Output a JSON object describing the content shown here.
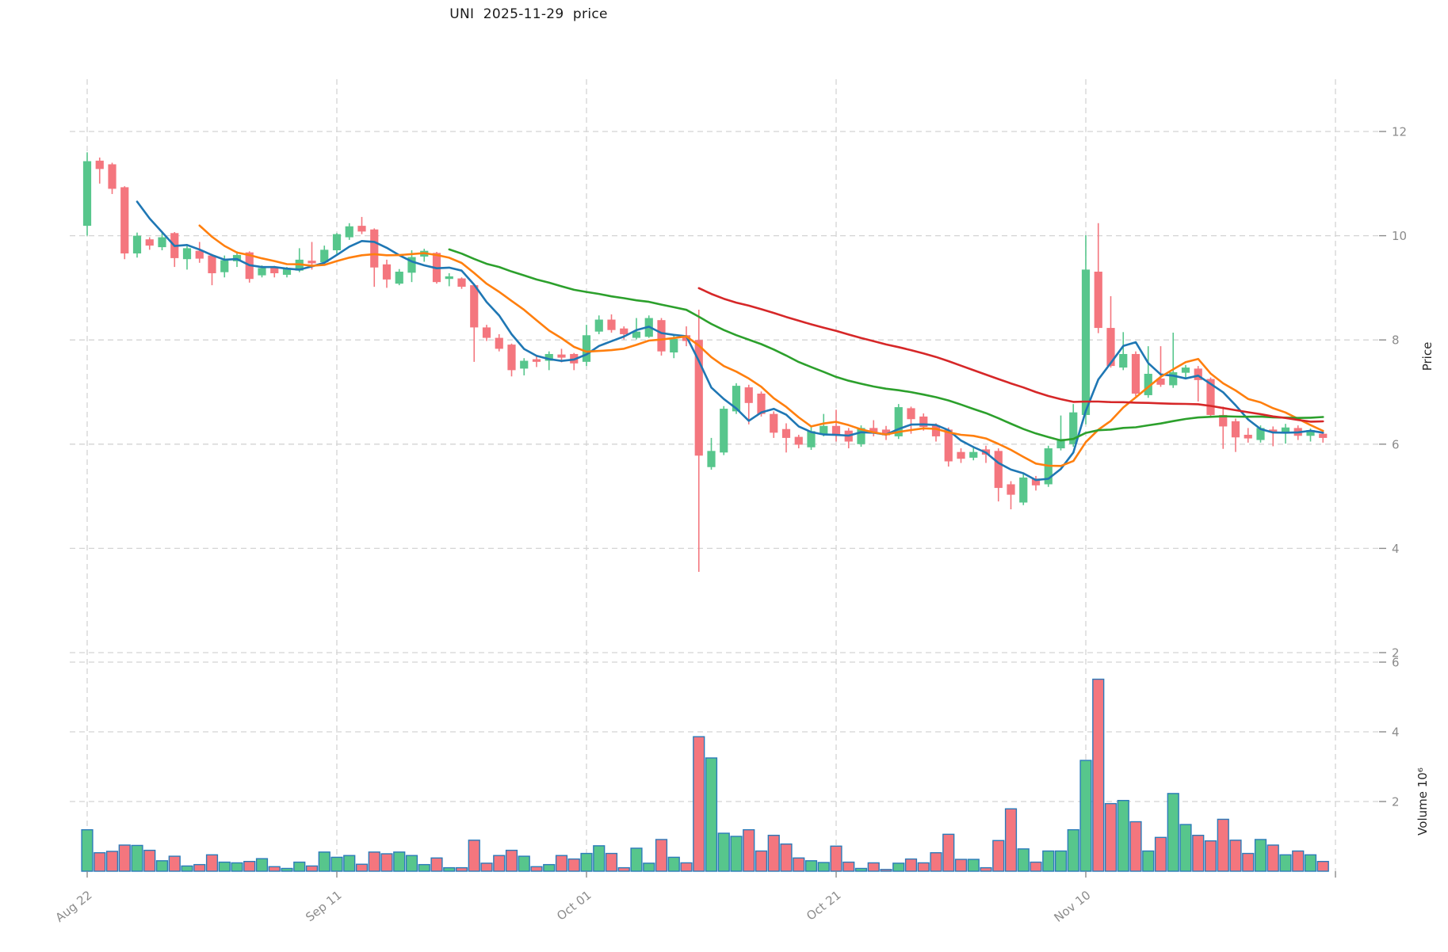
{
  "title": "UNI  2025-11-29  price",
  "chart_data": {
    "type": "candlestick",
    "title": "UNI  2025-11-29  price",
    "ylabel": "Price",
    "volume_ylabel": "Volume  10⁶",
    "legend": "none",
    "grid": "dashed",
    "price_ticks": [
      2,
      4,
      6,
      8,
      10,
      12
    ],
    "price_ylim": [
      1.9,
      13.0
    ],
    "volume_ticks_millions": [
      2,
      4,
      6
    ],
    "volume_ylim_millions": [
      0,
      6.2
    ],
    "x_ticks": [
      {
        "day": 0,
        "label": "Aug 22"
      },
      {
        "day": 20,
        "label": "Sep 11"
      },
      {
        "day": 40,
        "label": "Oct 01"
      },
      {
        "day": 60,
        "label": "Oct 21"
      },
      {
        "day": 80,
        "label": "Nov 10"
      },
      {
        "day": 100,
        "label": ""
      }
    ],
    "moving_averages": [
      {
        "name": "MA5",
        "window": 5,
        "color": "#1f77b4"
      },
      {
        "name": "MA10",
        "window": 10,
        "color": "#ff7f0e"
      },
      {
        "name": "MA30",
        "window": 30,
        "color": "#2ca02c"
      },
      {
        "name": "MA50",
        "window": 50,
        "color": "#d62728"
      }
    ],
    "colors": {
      "up": "#57c68c",
      "down": "#f4767e",
      "volume_edge": "#2b7bba",
      "grid": "#d4d4d4",
      "tick_text": "#8b8b8b",
      "axis_label_text": "#262626"
    },
    "candles_format": [
      "date",
      "open",
      "high",
      "low",
      "close",
      "volume_millions"
    ],
    "candles": [
      [
        "Aug 22",
        10.19,
        11.6,
        10.0,
        11.43,
        1.19
      ],
      [
        "Aug 23",
        11.44,
        11.5,
        11.0,
        11.28,
        0.53
      ],
      [
        "Aug 24",
        11.37,
        11.4,
        10.8,
        10.9,
        0.57
      ],
      [
        "Aug 25",
        10.93,
        10.95,
        9.55,
        9.66,
        0.75
      ],
      [
        "Aug 26",
        9.66,
        10.06,
        9.58,
        10.0,
        0.74
      ],
      [
        "Aug 27",
        9.93,
        9.97,
        9.73,
        9.81,
        0.6
      ],
      [
        "Aug 28",
        9.78,
        10.08,
        9.72,
        9.97,
        0.3
      ],
      [
        "Aug 29",
        10.05,
        10.07,
        9.4,
        9.57,
        0.43
      ],
      [
        "Aug 30",
        9.55,
        9.8,
        9.35,
        9.76,
        0.15
      ],
      [
        "Aug 31",
        9.71,
        9.88,
        9.48,
        9.56,
        0.19
      ],
      [
        "Sep 01",
        9.62,
        9.65,
        9.05,
        9.28,
        0.47
      ],
      [
        "Sep 02",
        9.3,
        9.62,
        9.2,
        9.53,
        0.26
      ],
      [
        "Sep 03",
        9.51,
        9.7,
        9.4,
        9.63,
        0.24
      ],
      [
        "Sep 04",
        9.68,
        9.7,
        9.1,
        9.17,
        0.28
      ],
      [
        "Sep 05",
        9.24,
        9.43,
        9.2,
        9.38,
        0.36
      ],
      [
        "Sep 06",
        9.38,
        9.42,
        9.2,
        9.28,
        0.13
      ],
      [
        "Sep 07",
        9.25,
        9.4,
        9.2,
        9.38,
        0.08
      ],
      [
        "Sep 08",
        9.33,
        9.76,
        9.3,
        9.54,
        0.26
      ],
      [
        "Sep 09",
        9.52,
        9.88,
        9.35,
        9.47,
        0.15
      ],
      [
        "Sep 10",
        9.49,
        9.81,
        9.45,
        9.73,
        0.55
      ],
      [
        "Sep 11",
        9.72,
        10.05,
        9.65,
        10.03,
        0.4
      ],
      [
        "Sep 12",
        9.97,
        10.24,
        9.92,
        10.18,
        0.45
      ],
      [
        "Sep 13",
        10.19,
        10.36,
        10.03,
        10.08,
        0.2
      ],
      [
        "Sep 14",
        10.12,
        10.14,
        9.02,
        9.39,
        0.55
      ],
      [
        "Sep 15",
        9.45,
        9.54,
        9.0,
        9.16,
        0.5
      ],
      [
        "Sep 16",
        9.08,
        9.36,
        9.05,
        9.31,
        0.55
      ],
      [
        "Sep 17",
        9.29,
        9.72,
        9.11,
        9.59,
        0.45
      ],
      [
        "Sep 18",
        9.6,
        9.75,
        9.5,
        9.71,
        0.19
      ],
      [
        "Sep 19",
        9.67,
        9.69,
        9.08,
        9.11,
        0.38
      ],
      [
        "Sep 20",
        9.17,
        9.28,
        9.03,
        9.22,
        0.1
      ],
      [
        "Sep 21",
        9.18,
        9.2,
        8.98,
        9.02,
        0.1
      ],
      [
        "Sep 22",
        9.05,
        9.07,
        7.58,
        8.24,
        0.89
      ],
      [
        "Sep 23",
        8.24,
        8.29,
        7.98,
        8.04,
        0.23
      ],
      [
        "Sep 24",
        8.04,
        8.11,
        7.78,
        7.83,
        0.45
      ],
      [
        "Sep 25",
        7.91,
        7.93,
        7.3,
        7.42,
        0.6
      ],
      [
        "Sep 26",
        7.45,
        7.65,
        7.32,
        7.6,
        0.43
      ],
      [
        "Sep 27",
        7.63,
        7.7,
        7.48,
        7.58,
        0.13
      ],
      [
        "Sep 28",
        7.6,
        7.78,
        7.42,
        7.73,
        0.19
      ],
      [
        "Sep 29",
        7.72,
        7.83,
        7.57,
        7.66,
        0.45
      ],
      [
        "Sep 30",
        7.73,
        7.75,
        7.42,
        7.55,
        0.35
      ],
      [
        "Oct 01",
        7.58,
        8.29,
        7.5,
        8.09,
        0.51
      ],
      [
        "Oct 02",
        8.16,
        8.47,
        8.11,
        8.39,
        0.73
      ],
      [
        "Oct 03",
        8.39,
        8.49,
        8.14,
        8.19,
        0.51
      ],
      [
        "Oct 04",
        8.22,
        8.26,
        8.01,
        8.11,
        0.1
      ],
      [
        "Oct 05",
        8.04,
        8.42,
        8.01,
        8.16,
        0.66
      ],
      [
        "Oct 06",
        8.06,
        8.47,
        8.04,
        8.42,
        0.23
      ],
      [
        "Oct 07",
        8.38,
        8.42,
        7.7,
        7.78,
        0.91
      ],
      [
        "Oct 08",
        7.76,
        8.08,
        7.65,
        8.02,
        0.4
      ],
      [
        "Oct 09",
        8.09,
        8.26,
        7.88,
        7.98,
        0.24
      ],
      [
        "Oct 10",
        8.0,
        8.58,
        3.55,
        5.78,
        3.86
      ],
      [
        "Oct 11",
        5.56,
        6.12,
        5.51,
        5.87,
        3.25
      ],
      [
        "Oct 12",
        5.84,
        6.73,
        5.79,
        6.68,
        1.09
      ],
      [
        "Oct 13",
        6.63,
        7.17,
        6.58,
        7.12,
        1.0
      ],
      [
        "Oct 14",
        7.09,
        7.14,
        6.38,
        6.79,
        1.19
      ],
      [
        "Oct 15",
        6.97,
        7.01,
        6.53,
        6.58,
        0.58
      ],
      [
        "Oct 16",
        6.58,
        6.63,
        6.12,
        6.22,
        1.03
      ],
      [
        "Oct 17",
        6.29,
        6.4,
        5.84,
        6.12,
        0.78
      ],
      [
        "Oct 18",
        6.14,
        6.18,
        5.92,
        5.99,
        0.38
      ],
      [
        "Oct 19",
        5.94,
        6.33,
        5.89,
        6.25,
        0.3
      ],
      [
        "Oct 20",
        6.2,
        6.58,
        6.15,
        6.35,
        0.25
      ],
      [
        "Oct 21",
        6.35,
        6.66,
        6.05,
        6.18,
        0.72
      ],
      [
        "Oct 22",
        6.26,
        6.31,
        5.92,
        6.05,
        0.26
      ],
      [
        "Oct 23",
        6.0,
        6.36,
        5.95,
        6.31,
        0.08
      ],
      [
        "Oct 24",
        6.31,
        6.46,
        6.15,
        6.21,
        0.24
      ],
      [
        "Oct 25",
        6.28,
        6.35,
        6.08,
        6.17,
        0.05
      ],
      [
        "Oct 26",
        6.15,
        6.77,
        6.1,
        6.71,
        0.23
      ],
      [
        "Oct 27",
        6.69,
        6.72,
        6.2,
        6.48,
        0.35
      ],
      [
        "Oct 28",
        6.53,
        6.59,
        6.26,
        6.33,
        0.24
      ],
      [
        "Oct 29",
        6.36,
        6.4,
        6.05,
        6.15,
        0.53
      ],
      [
        "Oct 30",
        6.28,
        6.32,
        5.57,
        5.67,
        1.06
      ],
      [
        "Oct 31",
        5.85,
        5.92,
        5.64,
        5.72,
        0.34
      ],
      [
        "Nov 01",
        5.74,
        5.95,
        5.69,
        5.85,
        0.34
      ],
      [
        "Nov 02",
        5.9,
        5.97,
        5.64,
        5.8,
        0.1
      ],
      [
        "Nov 03",
        5.87,
        5.92,
        4.9,
        5.16,
        0.88
      ],
      [
        "Nov 04",
        5.23,
        5.29,
        4.75,
        5.03,
        1.79
      ],
      [
        "Nov 05",
        4.88,
        5.44,
        4.83,
        5.36,
        0.64
      ],
      [
        "Nov 06",
        5.34,
        5.39,
        5.11,
        5.21,
        0.26
      ],
      [
        "Nov 07",
        5.23,
        5.97,
        5.18,
        5.92,
        0.58
      ],
      [
        "Nov 08",
        5.92,
        6.55,
        5.88,
        6.1,
        0.58
      ],
      [
        "Nov 09",
        6.0,
        6.77,
        5.95,
        6.61,
        1.19
      ],
      [
        "Nov 10",
        6.56,
        10.01,
        6.38,
        9.35,
        3.18
      ],
      [
        "Nov 11",
        9.31,
        10.24,
        8.13,
        8.23,
        5.51
      ],
      [
        "Nov 12",
        8.23,
        8.84,
        7.47,
        7.5,
        1.94
      ],
      [
        "Nov 13",
        7.47,
        8.15,
        7.42,
        7.73,
        2.03
      ],
      [
        "Nov 14",
        7.73,
        7.78,
        6.92,
        6.97,
        1.42
      ],
      [
        "Nov 15",
        6.94,
        7.88,
        6.89,
        7.35,
        0.58
      ],
      [
        "Nov 16",
        7.26,
        7.88,
        7.1,
        7.14,
        0.97
      ],
      [
        "Nov 17",
        7.13,
        8.14,
        7.08,
        7.38,
        2.23
      ],
      [
        "Nov 18",
        7.37,
        7.52,
        7.28,
        7.47,
        1.34
      ],
      [
        "Nov 19",
        7.45,
        7.5,
        6.82,
        7.23,
        1.03
      ],
      [
        "Nov 20",
        7.25,
        7.28,
        6.51,
        6.56,
        0.87
      ],
      [
        "Nov 21",
        6.56,
        6.72,
        5.91,
        6.34,
        1.49
      ],
      [
        "Nov 22",
        6.44,
        6.49,
        5.85,
        6.13,
        0.89
      ],
      [
        "Nov 23",
        6.18,
        6.31,
        6.03,
        6.11,
        0.51
      ],
      [
        "Nov 24",
        6.08,
        6.36,
        6.03,
        6.31,
        0.91
      ],
      [
        "Nov 25",
        6.28,
        6.34,
        5.96,
        6.23,
        0.75
      ],
      [
        "Nov 26",
        6.22,
        6.39,
        6.01,
        6.32,
        0.47
      ],
      [
        "Nov 27",
        6.31,
        6.36,
        6.08,
        6.16,
        0.58
      ],
      [
        "Nov 28",
        6.16,
        6.3,
        6.05,
        6.27,
        0.47
      ],
      [
        "Nov 29",
        6.2,
        6.23,
        6.03,
        6.12,
        0.28
      ]
    ]
  }
}
